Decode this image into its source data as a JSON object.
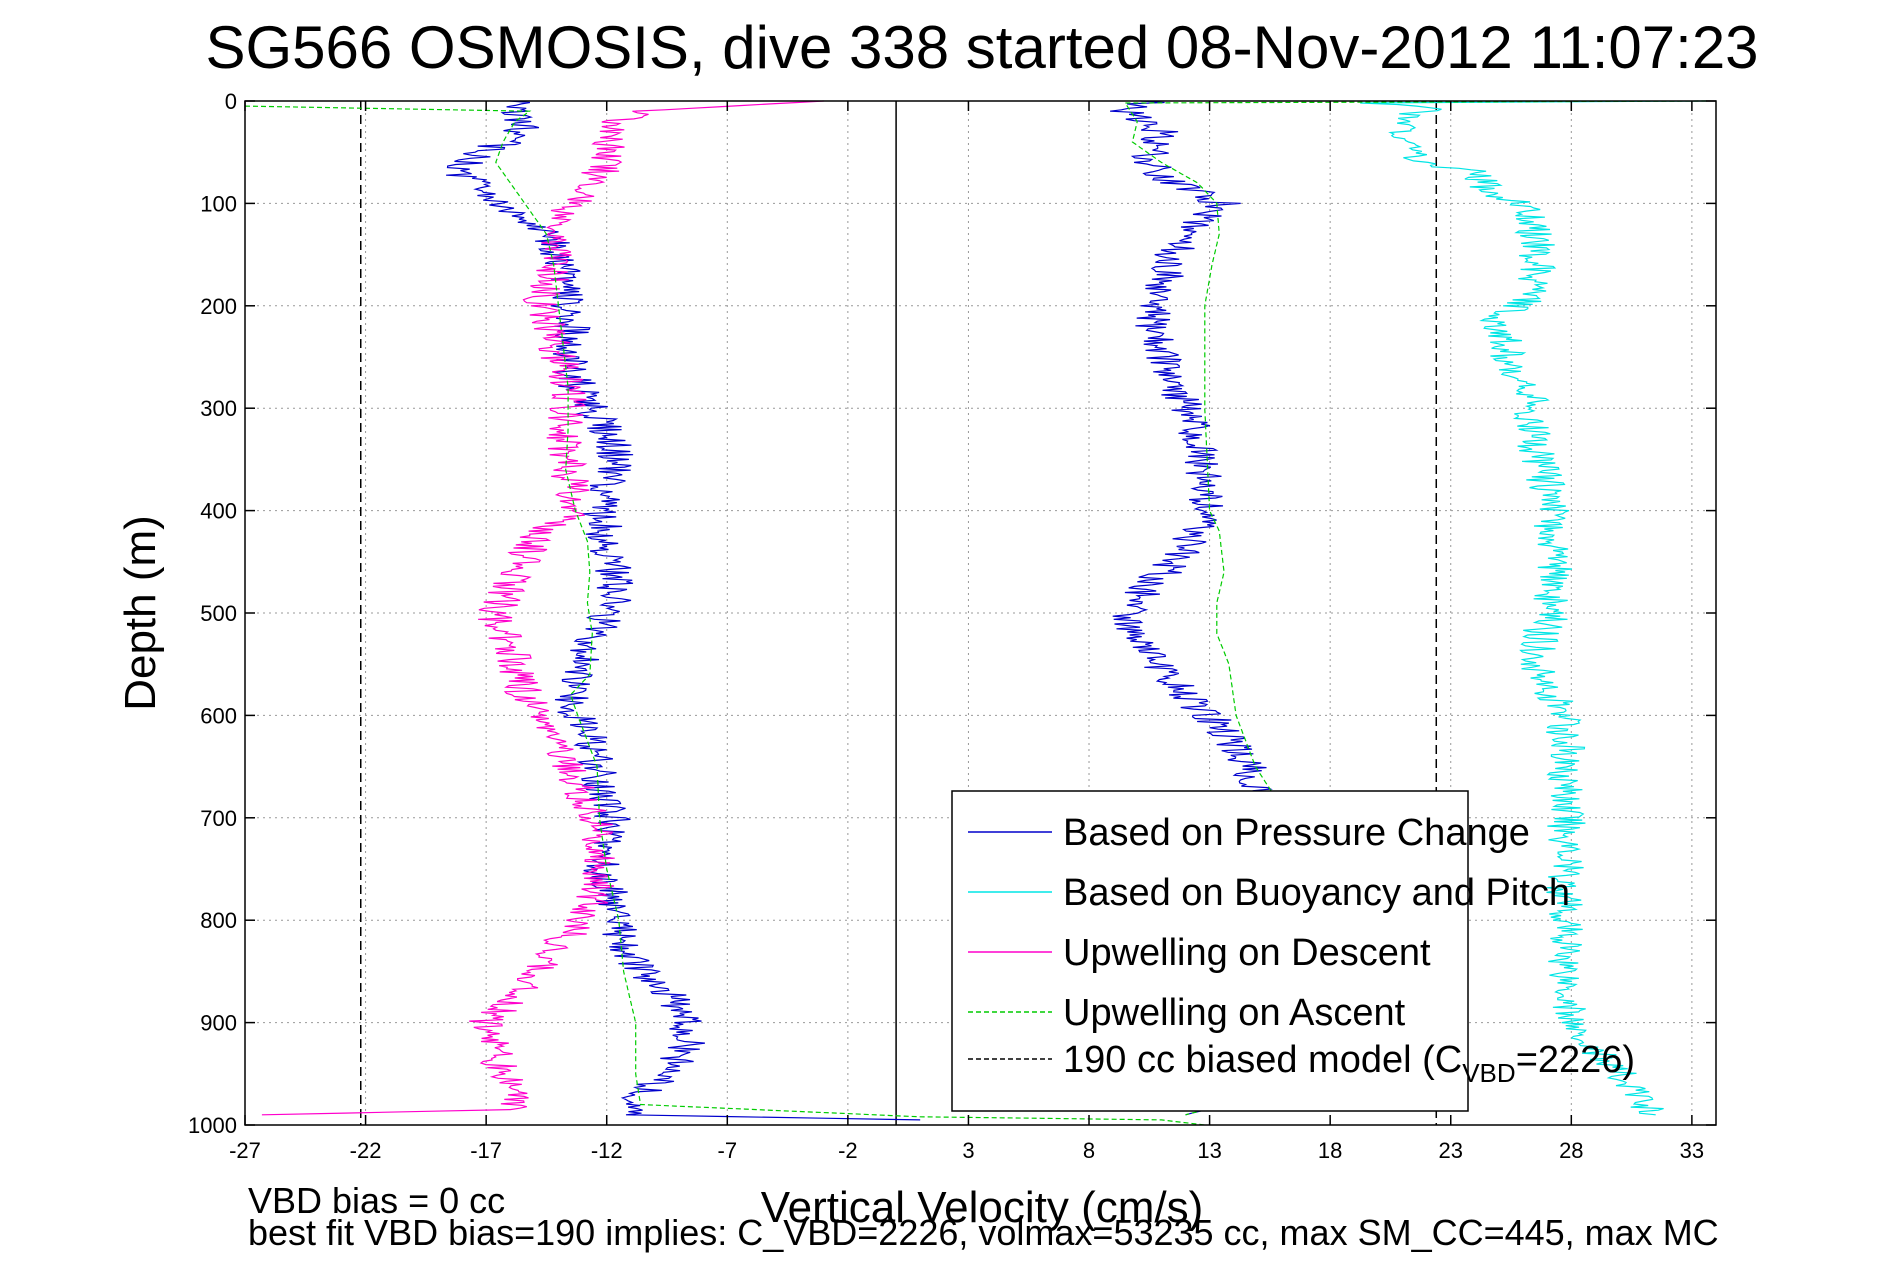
{
  "chart_data": {
    "type": "line",
    "title": "SG566 OSMOSIS, dive 338 started 08-Nov-2012 11:07:23",
    "xlabel": "Vertical Velocity (cm/s)",
    "ylabel": "Depth (m)",
    "xlim": [
      -27,
      34
    ],
    "ylim": [
      1000,
      0
    ],
    "y_reversed": true,
    "xticks": [
      -27,
      -22,
      -17,
      -12,
      -7,
      -2,
      3,
      8,
      13,
      18,
      23,
      28,
      33
    ],
    "yticks": [
      0,
      100,
      200,
      300,
      400,
      500,
      600,
      700,
      800,
      900,
      1000
    ],
    "grid": true,
    "legend_position": "bottom-right",
    "legend": [
      {
        "label": "Based on Pressure Change",
        "color": "#0000cc",
        "dash": "solid"
      },
      {
        "label": "Based on Buoyancy and Pitch",
        "color": "#00e5e5",
        "dash": "solid"
      },
      {
        "label": "Upwelling on Descent",
        "color": "#ff00cc",
        "dash": "solid"
      },
      {
        "label": "Upwelling on Ascent",
        "color": "#00cc00",
        "dash": "dashed"
      },
      {
        "label_prefix": "190 cc biased model (C",
        "label_sub": "VBD",
        "label_suffix": "=2226)",
        "color": "#000000",
        "dash": "dashed"
      }
    ],
    "series": [
      {
        "name": "Based on Pressure Change (descent)",
        "color": "#0000cc",
        "dash": "solid",
        "points": [
          [
            -15.5,
            0
          ],
          [
            -16,
            10
          ],
          [
            -15.5,
            20
          ],
          [
            -15.7,
            35
          ],
          [
            -17.2,
            50
          ],
          [
            -18.2,
            65
          ],
          [
            -17.6,
            80
          ],
          [
            -16.5,
            100
          ],
          [
            -15,
            120
          ],
          [
            -14.2,
            140
          ],
          [
            -14,
            160
          ],
          [
            -13.5,
            180
          ],
          [
            -13.8,
            200
          ],
          [
            -13.4,
            220
          ],
          [
            -13.6,
            250
          ],
          [
            -13.2,
            280
          ],
          [
            -12.7,
            300
          ],
          [
            -11.8,
            330
          ],
          [
            -11.6,
            350
          ],
          [
            -12,
            380
          ],
          [
            -12.3,
            400
          ],
          [
            -12.1,
            420
          ],
          [
            -11.8,
            450
          ],
          [
            -11.6,
            480
          ],
          [
            -11.9,
            500
          ],
          [
            -12.4,
            520
          ],
          [
            -13,
            550
          ],
          [
            -13.6,
            580
          ],
          [
            -13.2,
            600
          ],
          [
            -12.7,
            620
          ],
          [
            -12.3,
            650
          ],
          [
            -12.2,
            680
          ],
          [
            -11.8,
            700
          ],
          [
            -11.9,
            720
          ],
          [
            -12.2,
            750
          ],
          [
            -11.8,
            780
          ],
          [
            -11.6,
            800
          ],
          [
            -11.5,
            820
          ],
          [
            -10.5,
            850
          ],
          [
            -9.5,
            870
          ],
          [
            -8.8,
            900
          ],
          [
            -8.7,
            920
          ],
          [
            -9.5,
            950
          ],
          [
            -11,
            975
          ],
          [
            -11.2,
            990
          ],
          [
            1,
            995
          ]
        ]
      },
      {
        "name": "Based on Pressure Change (ascent)",
        "color": "#0000cc",
        "dash": "solid",
        "points": [
          [
            10.5,
            0
          ],
          [
            9.5,
            10
          ],
          [
            11,
            30
          ],
          [
            10.5,
            60
          ],
          [
            11.5,
            80
          ],
          [
            13.5,
            100
          ],
          [
            12.5,
            120
          ],
          [
            11.5,
            150
          ],
          [
            11,
            180
          ],
          [
            10.5,
            200
          ],
          [
            10.8,
            230
          ],
          [
            11.3,
            260
          ],
          [
            11.8,
            290
          ],
          [
            12.3,
            320
          ],
          [
            12.6,
            350
          ],
          [
            12.8,
            380
          ],
          [
            12.8,
            400
          ],
          [
            12.5,
            420
          ],
          [
            11.5,
            450
          ],
          [
            10.2,
            480
          ],
          [
            9.6,
            500
          ],
          [
            9.9,
            520
          ],
          [
            10.8,
            550
          ],
          [
            11.9,
            580
          ],
          [
            13,
            600
          ],
          [
            14,
            630
          ],
          [
            14.8,
            660
          ],
          [
            15.6,
            690
          ],
          [
            17,
            720
          ],
          [
            18.5,
            750
          ],
          [
            18.8,
            800
          ],
          [
            20,
            850
          ],
          [
            19.5,
            900
          ],
          [
            19,
            950
          ],
          [
            12,
            990
          ]
        ]
      },
      {
        "name": "Based on Buoyancy and Pitch",
        "color": "#00e5e5",
        "dash": "solid",
        "points": [
          [
            33.6,
            0
          ],
          [
            20,
            2
          ],
          [
            22,
            8
          ],
          [
            21,
            20
          ],
          [
            20.7,
            40
          ],
          [
            21.7,
            60
          ],
          [
            24.1,
            70
          ],
          [
            24.8,
            90
          ],
          [
            26,
            100
          ],
          [
            26.5,
            130
          ],
          [
            26.6,
            160
          ],
          [
            26.6,
            190
          ],
          [
            25.8,
            200
          ],
          [
            25,
            210
          ],
          [
            25.2,
            240
          ],
          [
            25.6,
            270
          ],
          [
            26.3,
            280
          ],
          [
            26.4,
            310
          ],
          [
            26.5,
            340
          ],
          [
            26.9,
            370
          ],
          [
            27.2,
            400
          ],
          [
            27.3,
            430
          ],
          [
            27.4,
            460
          ],
          [
            27.1,
            480
          ],
          [
            27.3,
            500
          ],
          [
            26.7,
            520
          ],
          [
            26.6,
            550
          ],
          [
            27.1,
            580
          ],
          [
            27.7,
            600
          ],
          [
            27.8,
            640
          ],
          [
            27.8,
            680
          ],
          [
            27.8,
            720
          ],
          [
            27.7,
            800
          ],
          [
            28,
            900
          ],
          [
            31.5,
            990
          ]
        ]
      },
      {
        "name": "Upwelling on Descent",
        "color": "#ff00cc",
        "dash": "solid",
        "points": [
          [
            -3,
            0
          ],
          [
            -10.7,
            10
          ],
          [
            -11.8,
            25
          ],
          [
            -11.8,
            45
          ],
          [
            -12.3,
            70
          ],
          [
            -13.1,
            90
          ],
          [
            -13.8,
            110
          ],
          [
            -14,
            140
          ],
          [
            -14.2,
            170
          ],
          [
            -14.8,
            200
          ],
          [
            -14.1,
            230
          ],
          [
            -13.9,
            260
          ],
          [
            -13.6,
            290
          ],
          [
            -13.7,
            320
          ],
          [
            -13.7,
            350
          ],
          [
            -13.4,
            380
          ],
          [
            -13.4,
            400
          ],
          [
            -14.8,
            420
          ],
          [
            -15.5,
            450
          ],
          [
            -16.2,
            480
          ],
          [
            -16.6,
            500
          ],
          [
            -16.4,
            520
          ],
          [
            -15.8,
            550
          ],
          [
            -15.4,
            580
          ],
          [
            -14.8,
            600
          ],
          [
            -14,
            630
          ],
          [
            -13.5,
            660
          ],
          [
            -12.6,
            690
          ],
          [
            -12.4,
            720
          ],
          [
            -12.3,
            750
          ],
          [
            -12.5,
            780
          ],
          [
            -13,
            800
          ],
          [
            -14.2,
            830
          ],
          [
            -15,
            860
          ],
          [
            -16.5,
            890
          ],
          [
            -17,
            900
          ],
          [
            -16.4,
            920
          ],
          [
            -16.5,
            950
          ],
          [
            -15.5,
            975
          ],
          [
            -16,
            985
          ],
          [
            -26.3,
            990
          ]
        ]
      },
      {
        "name": "Upwelling on Ascent",
        "color": "#00cc00",
        "dash": "dashed",
        "points": [
          [
            -27,
            5
          ],
          [
            -15.2,
            10
          ],
          [
            -15.8,
            20
          ],
          [
            -16.3,
            40
          ],
          [
            -16.6,
            60
          ],
          [
            -16,
            80
          ],
          [
            -15.4,
            100
          ],
          [
            -14.5,
            130
          ],
          [
            -14.2,
            160
          ],
          [
            -14,
            200
          ],
          [
            -13.8,
            240
          ],
          [
            -13.6,
            280
          ],
          [
            -13.6,
            320
          ],
          [
            -13.7,
            360
          ],
          [
            -13.3,
            400
          ],
          [
            -12.8,
            430
          ],
          [
            -12.7,
            460
          ],
          [
            -12.8,
            490
          ],
          [
            -12.6,
            520
          ],
          [
            -12.7,
            560
          ],
          [
            -13.5,
            580
          ],
          [
            -13.2,
            600
          ],
          [
            -12.4,
            650
          ],
          [
            -12.3,
            700
          ],
          [
            -12,
            750
          ],
          [
            -11.5,
            800
          ],
          [
            -11.3,
            850
          ],
          [
            -10.8,
            900
          ],
          [
            -10.8,
            950
          ],
          [
            -10.6,
            980
          ],
          [
            1,
            992
          ],
          [
            11,
            995
          ],
          [
            12.8,
            1000
          ]
        ]
      },
      {
        "name": "Upwelling on Ascent (right)",
        "color": "#00cc00",
        "dash": "dashed",
        "points": [
          [
            33.6,
            0
          ],
          [
            9.5,
            2
          ],
          [
            10,
            20
          ],
          [
            9.8,
            40
          ],
          [
            11,
            60
          ],
          [
            12.5,
            80
          ],
          [
            13.3,
            100
          ],
          [
            13.4,
            130
          ],
          [
            13.1,
            160
          ],
          [
            12.8,
            200
          ],
          [
            12.8,
            250
          ],
          [
            12.8,
            300
          ],
          [
            12.9,
            350
          ],
          [
            13,
            400
          ],
          [
            13.4,
            420
          ],
          [
            13.6,
            460
          ],
          [
            13.3,
            490
          ],
          [
            13.3,
            520
          ],
          [
            13.8,
            550
          ],
          [
            14.1,
            600
          ],
          [
            14.9,
            650
          ],
          [
            16,
            690
          ],
          [
            17.5,
            720
          ],
          [
            18.3,
            760
          ],
          [
            18.4,
            800
          ],
          [
            19,
            850
          ],
          [
            19,
            900
          ],
          [
            18.8,
            950
          ],
          [
            12,
            990
          ]
        ]
      }
    ],
    "reference_lines": [
      {
        "name": "190 cc biased model (descent)",
        "x": -22.2,
        "color": "#000000",
        "dash": "dashed"
      },
      {
        "name": "190 cc biased model (ascent)",
        "x": 22.4,
        "color": "#000000",
        "dash": "dashed"
      },
      {
        "name": "zero reference",
        "x": 0,
        "color": "#000000",
        "dash": "solid"
      }
    ]
  },
  "footer": {
    "line1": "VBD bias = 0 cc",
    "line2": "best fit VBD bias=190 implies: C_VBD=2226, volmax=53235 cc, max SM_CC=445, max MC"
  }
}
